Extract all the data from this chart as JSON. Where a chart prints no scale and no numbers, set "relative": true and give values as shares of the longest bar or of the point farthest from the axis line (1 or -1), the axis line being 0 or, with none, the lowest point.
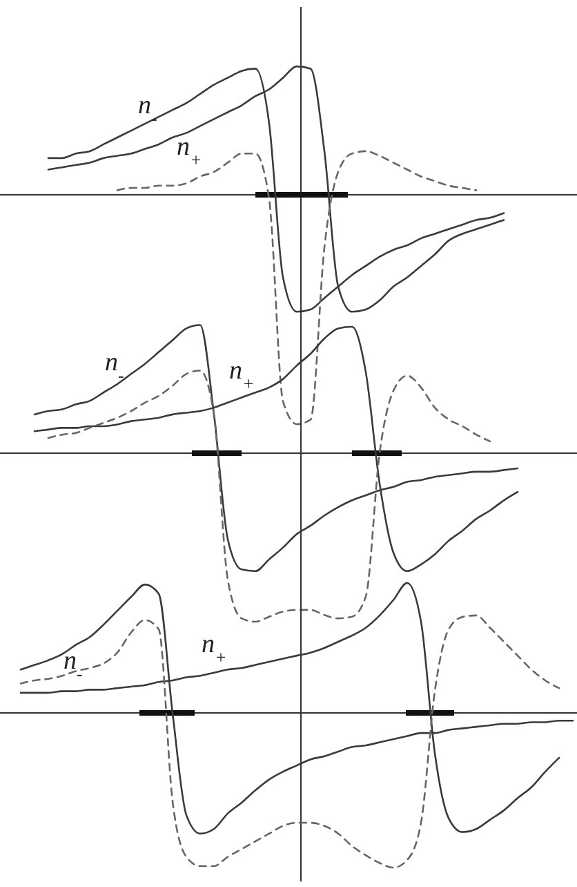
{
  "chart_data": [
    {
      "type": "line",
      "relative": true,
      "line_style": "solid",
      "categories": [
        null,
        null,
        null,
        null,
        null,
        null,
        null,
        null,
        null,
        null,
        null,
        null,
        null,
        null,
        null,
        null,
        null,
        null,
        null,
        null,
        null,
        null,
        null,
        null,
        null,
        null,
        null,
        null,
        null,
        null,
        null,
        null,
        null,
        null,
        null,
        null,
        null,
        null,
        null,
        null,
        null,
        null
      ],
      "series": [
        {
          "name": "n$_{-}$",
          "color": "#3a3a3a",
          "values": [
            null,
            null,
            null,
            0.16,
            0.16,
            0.18,
            0.19,
            0.22,
            0.25,
            0.28,
            0.31,
            0.34,
            0.37,
            0.4,
            0.44,
            0.48,
            0.51,
            0.54,
            0.55,
            0.31,
            -0.36,
            -0.51,
            -0.5,
            -0.45,
            -0.4,
            -0.35,
            -0.31,
            -0.27,
            -0.24,
            -0.22,
            -0.19,
            -0.17,
            -0.15,
            -0.13,
            -0.11,
            -0.1,
            -0.08,
            null,
            null,
            null,
            null,
            null
          ]
        },
        {
          "name": "n$_{+}$",
          "color": "#3a3a3a",
          "values": [
            null,
            null,
            null,
            0.11,
            0.12,
            0.13,
            0.14,
            0.16,
            0.17,
            0.18,
            0.2,
            0.22,
            0.25,
            0.27,
            0.3,
            0.33,
            0.36,
            0.39,
            0.43,
            0.46,
            0.51,
            0.56,
            0.55,
            0.19,
            -0.4,
            -0.51,
            -0.5,
            -0.46,
            -0.4,
            -0.36,
            -0.31,
            -0.26,
            -0.2,
            -0.17,
            -0.15,
            -0.13,
            -0.11,
            null,
            null,
            null,
            null,
            null
          ]
        },
        {
          "color": "#666666",
          "line_style": "dashed",
          "values": [
            null,
            null,
            null,
            null,
            null,
            null,
            null,
            null,
            0.02,
            0.03,
            0.03,
            0.04,
            0.04,
            0.05,
            0.08,
            0.1,
            0.14,
            0.18,
            0.18,
            -0.02,
            -0.9,
            -1.0,
            -0.98,
            -0.23,
            0.1,
            0.18,
            0.19,
            0.17,
            0.14,
            0.11,
            0.08,
            0.06,
            0.04,
            0.03,
            0.02,
            null,
            null,
            null,
            null,
            null,
            null,
            null
          ]
        }
      ]
    },
    {
      "type": "line",
      "relative": true,
      "line_style": "solid",
      "categories": [
        null,
        null,
        null,
        null,
        null,
        null,
        null,
        null,
        null,
        null,
        null,
        null,
        null,
        null,
        null,
        null,
        null,
        null,
        null,
        null,
        null,
        null,
        null,
        null,
        null,
        null,
        null,
        null,
        null,
        null,
        null,
        null,
        null,
        null,
        null,
        null,
        null,
        null,
        null,
        null,
        null,
        null
      ],
      "series": [
        {
          "name": "n$_{-}$",
          "color": "#3a3a3a",
          "values": [
            null,
            null,
            0.23,
            0.25,
            0.26,
            0.29,
            0.31,
            0.36,
            0.41,
            0.47,
            0.53,
            0.6,
            0.67,
            0.74,
            0.76,
            0.23,
            -0.51,
            -0.69,
            -0.7,
            -0.63,
            -0.56,
            -0.48,
            -0.43,
            -0.37,
            -0.32,
            -0.28,
            -0.25,
            -0.22,
            -0.2,
            -0.17,
            -0.16,
            -0.14,
            -0.13,
            -0.12,
            -0.11,
            -0.11,
            -0.1,
            -0.09,
            null,
            null,
            null,
            null
          ]
        },
        {
          "name": "n$_{+}$",
          "color": "#3a3a3a",
          "values": [
            null,
            null,
            0.13,
            0.14,
            0.15,
            0.15,
            0.16,
            0.16,
            0.17,
            0.19,
            0.2,
            0.21,
            0.23,
            0.24,
            0.25,
            0.27,
            0.3,
            0.33,
            0.36,
            0.39,
            0.44,
            0.52,
            0.59,
            0.68,
            0.74,
            0.75,
            0.48,
            -0.18,
            -0.59,
            -0.7,
            -0.66,
            -0.6,
            -0.52,
            -0.46,
            -0.39,
            -0.34,
            -0.28,
            -0.23,
            null,
            null,
            null,
            null
          ]
        },
        {
          "color": "#666666",
          "line_style": "dashed",
          "values": [
            null,
            null,
            null,
            0.09,
            0.11,
            0.12,
            0.15,
            0.18,
            0.21,
            0.25,
            0.3,
            0.34,
            0.4,
            0.47,
            0.49,
            0.23,
            -0.75,
            -0.98,
            -1.0,
            -0.97,
            -0.94,
            -0.93,
            -0.93,
            -0.96,
            -0.98,
            -0.97,
            -0.85,
            0,
            0.37,
            0.46,
            0.39,
            0.27,
            0.2,
            0.16,
            0.11,
            0.07,
            null,
            null,
            null,
            null,
            null,
            null
          ]
        }
      ]
    },
    {
      "type": "line",
      "relative": true,
      "line_style": "solid",
      "categories": [
        null,
        null,
        null,
        null,
        null,
        null,
        null,
        null,
        null,
        null,
        null,
        null,
        null,
        null,
        null,
        null,
        null,
        null,
        null,
        null,
        null,
        null,
        null,
        null,
        null,
        null,
        null,
        null,
        null,
        null,
        null,
        null,
        null,
        null,
        null,
        null,
        null,
        null,
        null,
        null,
        null,
        null
      ],
      "series": [
        {
          "name": "n$_{-}$",
          "color": "#3a3a3a",
          "values": [
            null,
            0.28,
            0.31,
            0.34,
            0.38,
            0.44,
            0.49,
            0.57,
            0.66,
            0.75,
            0.83,
            0.77,
            0,
            -0.66,
            -0.78,
            -0.75,
            -0.65,
            -0.58,
            -0.5,
            -0.43,
            -0.38,
            -0.34,
            -0.3,
            -0.28,
            -0.25,
            -0.22,
            -0.21,
            -0.19,
            -0.17,
            -0.15,
            -0.13,
            -0.13,
            -0.11,
            -0.1,
            -0.09,
            -0.08,
            -0.07,
            -0.07,
            -0.06,
            -0.06,
            -0.05,
            -0.05
          ]
        },
        {
          "name": "n$_{+}$",
          "color": "#3a3a3a",
          "values": [
            null,
            0.13,
            0.13,
            0.13,
            0.14,
            0.14,
            0.15,
            0.15,
            0.16,
            0.17,
            0.18,
            0.2,
            0.21,
            0.23,
            0.24,
            0.26,
            0.28,
            0.29,
            0.31,
            0.33,
            0.35,
            0.37,
            0.39,
            0.42,
            0.46,
            0.5,
            0.55,
            0.63,
            0.73,
            0.84,
            0.59,
            -0.26,
            -0.68,
            -0.77,
            -0.75,
            -0.69,
            -0.63,
            -0.55,
            -0.48,
            -0.38,
            -0.29,
            null
          ]
        },
        {
          "color": "#666666",
          "line_style": "dashed",
          "values": [
            null,
            0.19,
            0.21,
            0.22,
            0.24,
            0.27,
            0.29,
            0.32,
            0.39,
            0.52,
            0.6,
            0.54,
            -0.57,
            -0.93,
            -0.99,
            -0.99,
            -0.93,
            -0.88,
            -0.83,
            -0.78,
            -0.73,
            -0.71,
            -0.71,
            -0.73,
            -0.78,
            -0.86,
            -0.92,
            -0.97,
            -1.0,
            -0.95,
            -0.71,
            0.14,
            0.54,
            0.62,
            0.63,
            0.55,
            0.46,
            0.37,
            0.28,
            0.21,
            0.16,
            null
          ]
        }
      ]
    }
  ]
}
